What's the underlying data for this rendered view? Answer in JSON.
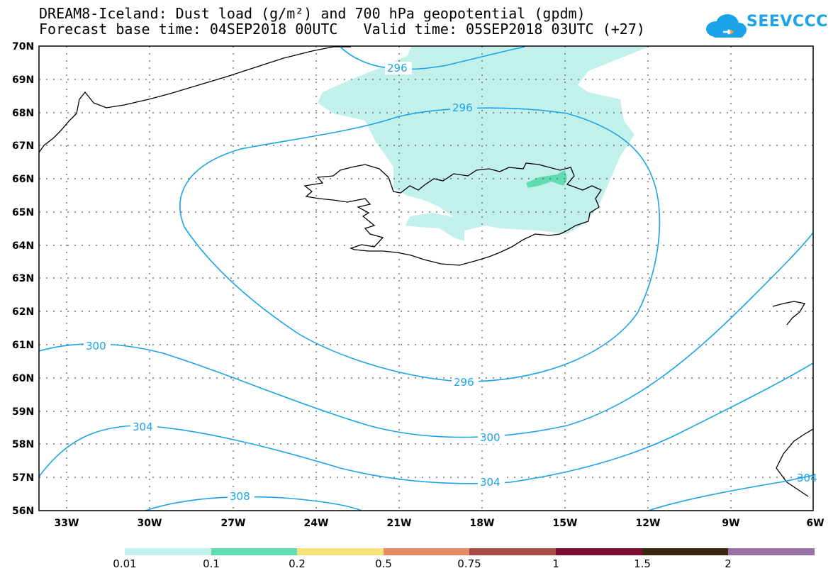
{
  "title": {
    "line1": "DREAM8-Iceland: Dust load (g/m²) and 700 hPa geopotential (gpdm)",
    "line2": "Forecast base time: 04SEP2018 00UTC   Valid time: 05SEP2018 03UTC (+27)"
  },
  "logo": {
    "text": "SEEVCCC"
  },
  "map": {
    "lat_labels": [
      "70N",
      "69N",
      "68N",
      "67N",
      "66N",
      "65N",
      "64N",
      "63N",
      "62N",
      "61N",
      "60N",
      "59N",
      "58N",
      "57N",
      "56N"
    ],
    "lon_labels": [
      "33W",
      "30W",
      "27W",
      "24W",
      "21W",
      "18W",
      "15W",
      "12W",
      "9W",
      "6W"
    ],
    "contour_labels": [
      "296",
      "296",
      "300",
      "296",
      "304",
      "300",
      "308",
      "304",
      "304"
    ],
    "contour_color": "#1aa3e8",
    "dust_colors": {
      "lt_0_1": "#c2f0ea",
      "lt_0_2": "#5fdcb0"
    }
  },
  "colorbar": {
    "labels": [
      "0.01",
      "0.1",
      "0.2",
      "0.5",
      "0.75",
      "1",
      "1.5",
      "2"
    ],
    "colors": [
      "#c2f0ea",
      "#5fdcb0",
      "#f6e47a",
      "#e98a66",
      "#a84b42",
      "#7f0c35",
      "#3a2412",
      "#9870a3"
    ]
  }
}
